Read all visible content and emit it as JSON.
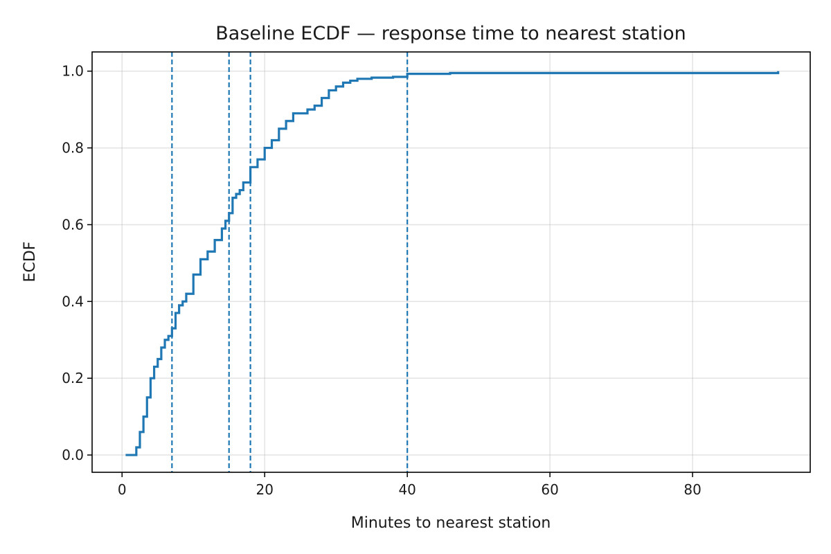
{
  "chart_data": {
    "type": "line",
    "title": "Baseline ECDF — response time to nearest station",
    "xlabel": "Minutes to nearest station",
    "ylabel": "ECDF",
    "xlim": [
      -4.2,
      96.5
    ],
    "ylim": [
      -0.045,
      1.05
    ],
    "x_ticks": [
      0,
      20,
      40,
      60,
      80
    ],
    "y_ticks": [
      0.0,
      0.2,
      0.4,
      0.6,
      0.8,
      1.0
    ],
    "x_tick_labels": [
      "0",
      "20",
      "40",
      "60",
      "80"
    ],
    "y_tick_labels": [
      "0.0",
      "0.2",
      "0.4",
      "0.6",
      "0.8",
      "1.0"
    ],
    "grid": true,
    "legend": "none",
    "color": "#1f77b4",
    "vertical_lines": [
      7,
      15,
      18,
      40
    ],
    "series": [
      {
        "x": [
          0.5,
          1.5,
          2.0,
          2.5,
          3.0,
          3.5,
          4.0,
          4.5,
          5.0,
          5.5,
          6.0,
          6.5,
          7.0,
          7.5,
          8.0,
          8.5,
          9.0,
          10.0,
          11.0,
          12.0,
          13.0,
          14.0,
          14.5,
          15.0,
          15.5,
          16.0,
          16.5,
          17.0,
          18.0,
          19.0,
          20.0,
          21.0,
          22.0,
          23.0,
          24.0,
          25.0,
          26.0,
          27.0,
          28.0,
          29.0,
          30.0,
          31.0,
          32.0,
          33.0,
          35.0,
          38.0,
          40.0,
          42.0,
          46.0,
          50.0,
          60.0,
          70.0,
          80.0,
          92.0
        ],
        "y": [
          0.0,
          0.0,
          0.02,
          0.06,
          0.1,
          0.15,
          0.2,
          0.23,
          0.25,
          0.28,
          0.3,
          0.31,
          0.33,
          0.37,
          0.39,
          0.4,
          0.42,
          0.47,
          0.51,
          0.53,
          0.56,
          0.59,
          0.61,
          0.63,
          0.67,
          0.68,
          0.69,
          0.71,
          0.75,
          0.77,
          0.8,
          0.82,
          0.85,
          0.87,
          0.89,
          0.89,
          0.9,
          0.91,
          0.93,
          0.95,
          0.96,
          0.97,
          0.975,
          0.98,
          0.983,
          0.985,
          0.993,
          0.993,
          0.995,
          0.995,
          0.995,
          0.995,
          0.995,
          1.0
        ]
      }
    ]
  }
}
